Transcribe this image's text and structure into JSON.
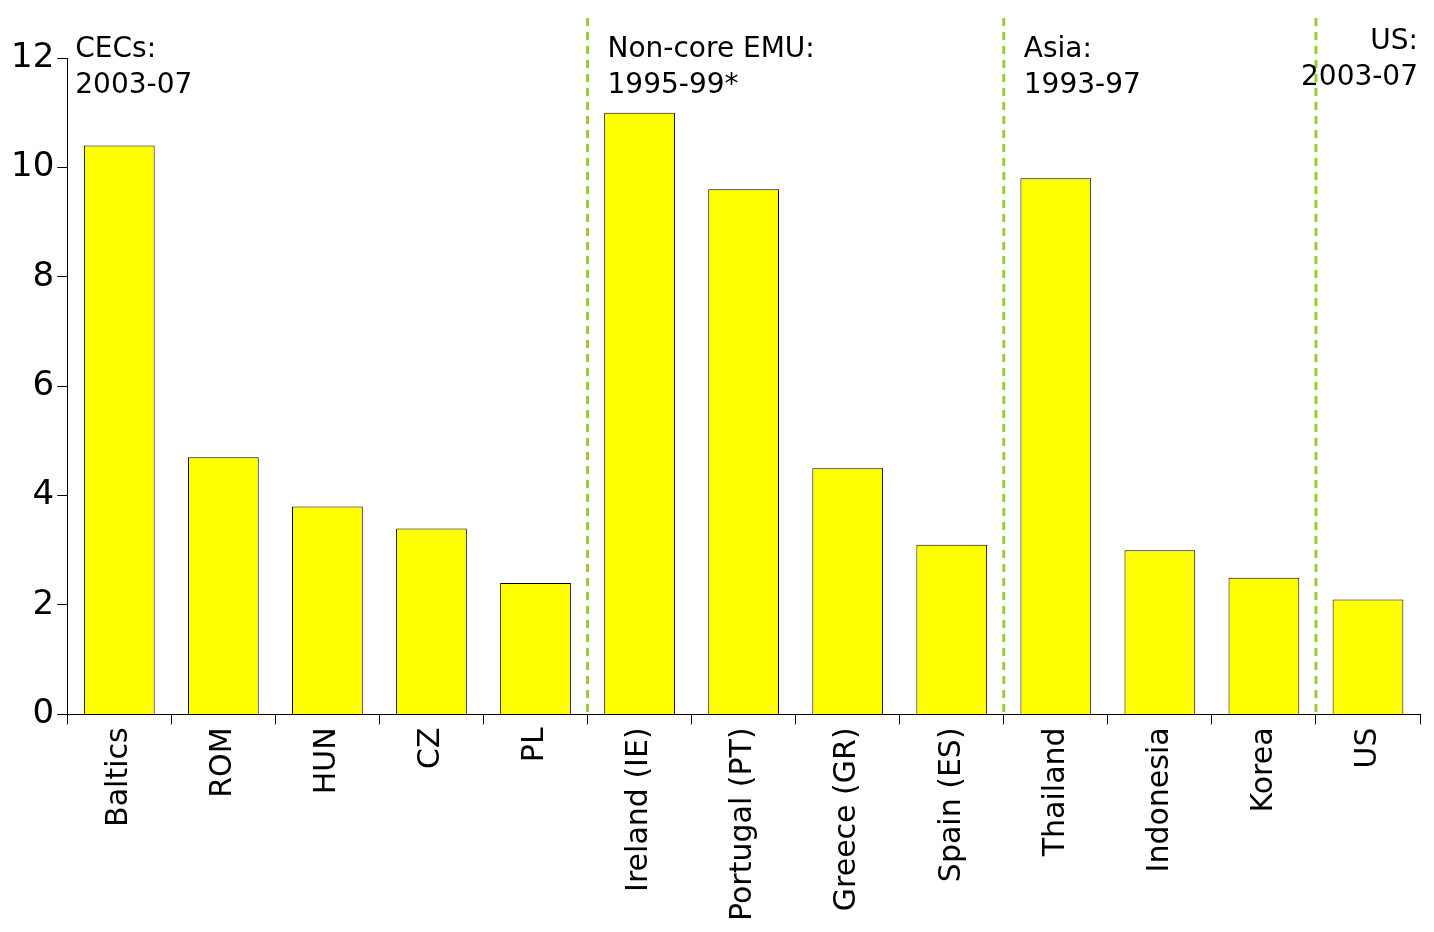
{
  "chart_data": {
    "type": "bar",
    "categories": [
      "Baltics",
      "ROM",
      "HUN",
      "CZ",
      "PL",
      "Ireland (IE)",
      "Portugal (PT)",
      "Greece (GR)",
      "Spain (ES)",
      "Thailand",
      "Indonesia",
      "Korea",
      "US"
    ],
    "values": [
      10.4,
      4.7,
      3.8,
      3.4,
      2.4,
      11.0,
      9.6,
      4.5,
      3.1,
      9.8,
      3.0,
      2.5,
      2.1
    ],
    "color": "#ffff00",
    "ylim": [
      0,
      12
    ],
    "yticks": [
      0,
      2,
      4,
      6,
      8,
      10,
      12
    ],
    "grid": false,
    "legend": false,
    "annotations": [
      "CECs:\n2003-07",
      "Non-core EMU:\n1995-99*",
      "Asia:\n1993-97",
      "US:\n2003-07"
    ]
  }
}
